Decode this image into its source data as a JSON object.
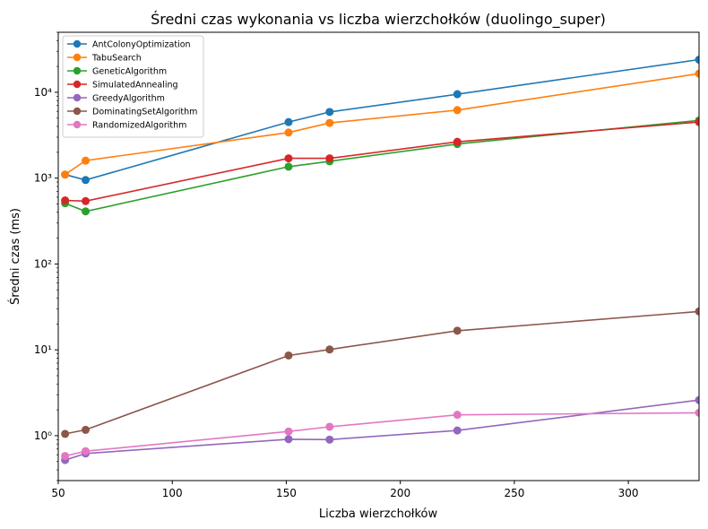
{
  "chart_data": {
    "type": "line",
    "title": "Średni czas wykonania vs liczba wierzchołków (duolingo_super)",
    "xlabel": "Liczba wierzchołków",
    "ylabel": "Średni czas (ms)",
    "xlim": [
      50,
      331
    ],
    "ylim": [
      0.3,
      50000
    ],
    "yscale": "log",
    "grid": false,
    "legend_position": "top-left",
    "xticks": [
      50,
      100,
      150,
      200,
      250,
      300
    ],
    "xtick_labels": [
      "50",
      "100",
      "150",
      "200",
      "250",
      "300"
    ],
    "yticks": [
      1,
      10,
      100,
      1000,
      10000
    ],
    "ytick_labels": [
      "10⁰",
      "10¹",
      "10²",
      "10³",
      "10⁴"
    ],
    "series": [
      {
        "name": "AntColonyOptimization",
        "color": "#1f77b4",
        "x": [
          53,
          62,
          151,
          169,
          225,
          331
        ],
        "y": [
          1100,
          950,
          4500,
          5900,
          9500,
          24000
        ]
      },
      {
        "name": "TabuSearch",
        "color": "#ff7f0e",
        "x": [
          53,
          62,
          151,
          169,
          225,
          331
        ],
        "y": [
          1100,
          1600,
          3400,
          4400,
          6200,
          16500
        ]
      },
      {
        "name": "GeneticAlgorithm",
        "color": "#2ca02c",
        "x": [
          53,
          62,
          151,
          169,
          225,
          331
        ],
        "y": [
          510,
          410,
          1360,
          1570,
          2500,
          4700
        ]
      },
      {
        "name": "SimulatedAnnealing",
        "color": "#d62728",
        "x": [
          53,
          62,
          151,
          169,
          225,
          331
        ],
        "y": [
          550,
          540,
          1700,
          1700,
          2650,
          4500
        ]
      },
      {
        "name": "GreedyAlgorithm",
        "color": "#9467bd",
        "x": [
          53,
          62,
          151,
          169,
          225,
          331
        ],
        "y": [
          0.52,
          0.62,
          0.91,
          0.9,
          1.15,
          2.6
        ]
      },
      {
        "name": "DominatingSetAlgorithm",
        "color": "#8c564b",
        "x": [
          53,
          62,
          151,
          169,
          225,
          331
        ],
        "y": [
          1.05,
          1.17,
          8.6,
          10.1,
          16.7,
          28
        ]
      },
      {
        "name": "RandomizedAlgorithm",
        "color": "#e377c2",
        "x": [
          53,
          62,
          151,
          169,
          225,
          331
        ],
        "y": [
          0.58,
          0.66,
          1.12,
          1.27,
          1.75,
          1.85
        ]
      }
    ]
  }
}
